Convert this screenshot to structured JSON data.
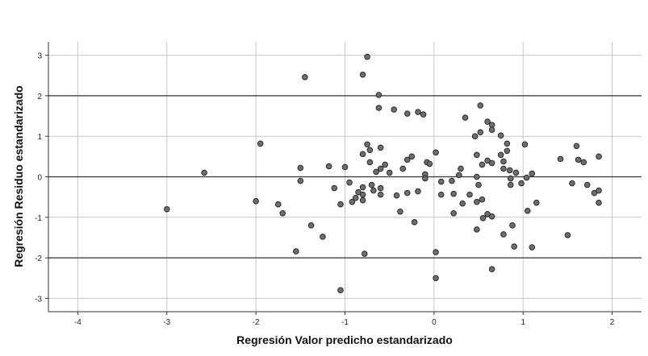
{
  "chart_data": {
    "type": "scatter",
    "title": "",
    "xlabel": "Regresión Valor predicho estandarizado",
    "ylabel": "Regresión Residuo estandarizado",
    "xlim": [
      -4.33,
      2.33
    ],
    "ylim": [
      -3.33,
      3.33
    ],
    "x_ticks": [
      -4,
      -3,
      -2,
      -1,
      0,
      1,
      2
    ],
    "y_ticks": [
      -3,
      -2,
      -1,
      0,
      1,
      2,
      3
    ],
    "reference_lines_y": [
      -2,
      0,
      2
    ],
    "grid": true,
    "legend": "none",
    "colors": {
      "marker_fill": "#6e6e6e",
      "marker_stroke": "#2a2a2a",
      "grid": "#c8c8c8",
      "reference_line": "#333333",
      "axis": "#333333"
    },
    "series": [
      {
        "points": [
          [
            -3.0,
            -0.8
          ],
          [
            -2.58,
            0.1
          ],
          [
            -2.0,
            -0.6
          ],
          [
            -1.95,
            0.82
          ],
          [
            -1.75,
            -0.68
          ],
          [
            -1.7,
            -0.9
          ],
          [
            -1.55,
            -1.84
          ],
          [
            -1.5,
            0.22
          ],
          [
            -1.5,
            -0.1
          ],
          [
            -1.45,
            2.46
          ],
          [
            -1.38,
            -1.2
          ],
          [
            -1.25,
            -1.48
          ],
          [
            -1.18,
            0.26
          ],
          [
            -1.12,
            -0.28
          ],
          [
            -1.05,
            -0.68
          ],
          [
            -1.05,
            -2.8
          ],
          [
            -1.0,
            0.24
          ],
          [
            -0.95,
            -0.14
          ],
          [
            -0.92,
            -0.62
          ],
          [
            -0.88,
            -0.52
          ],
          [
            -0.85,
            -0.38
          ],
          [
            -0.8,
            2.52
          ],
          [
            -0.8,
            0.56
          ],
          [
            -0.8,
            -0.26
          ],
          [
            -0.8,
            -0.44
          ],
          [
            -0.8,
            -0.58
          ],
          [
            -0.78,
            -1.9
          ],
          [
            -0.75,
            2.96
          ],
          [
            -0.75,
            0.8
          ],
          [
            -0.72,
            0.66
          ],
          [
            -0.72,
            0.36
          ],
          [
            -0.7,
            -0.2
          ],
          [
            -0.68,
            -0.34
          ],
          [
            -0.65,
            0.12
          ],
          [
            -0.62,
            2.02
          ],
          [
            -0.62,
            1.7
          ],
          [
            -0.6,
            0.72
          ],
          [
            -0.6,
            0.2
          ],
          [
            -0.6,
            -0.28
          ],
          [
            -0.6,
            -0.44
          ],
          [
            -0.55,
            0.3
          ],
          [
            -0.5,
            0.1
          ],
          [
            -0.45,
            1.66
          ],
          [
            -0.42,
            -0.46
          ],
          [
            -0.38,
            -0.86
          ],
          [
            -0.35,
            0.2
          ],
          [
            -0.3,
            1.56
          ],
          [
            -0.3,
            0.42
          ],
          [
            -0.3,
            -0.4
          ],
          [
            -0.25,
            0.5
          ],
          [
            -0.22,
            -1.12
          ],
          [
            -0.18,
            1.6
          ],
          [
            -0.18,
            -0.36
          ],
          [
            -0.12,
            1.54
          ],
          [
            -0.1,
            0.06
          ],
          [
            -0.1,
            -0.04
          ],
          [
            -0.08,
            0.36
          ],
          [
            -0.05,
            0.32
          ],
          [
            0.02,
            0.6
          ],
          [
            0.02,
            -1.86
          ],
          [
            0.02,
            -2.5
          ],
          [
            0.08,
            -0.12
          ],
          [
            0.08,
            -0.44
          ],
          [
            0.2,
            -0.1
          ],
          [
            0.22,
            -0.42
          ],
          [
            0.22,
            -0.9
          ],
          [
            0.28,
            0.04
          ],
          [
            0.3,
            0.2
          ],
          [
            0.32,
            -0.66
          ],
          [
            0.35,
            1.46
          ],
          [
            0.4,
            -0.44
          ],
          [
            0.46,
            1.0
          ],
          [
            0.48,
            0.54
          ],
          [
            0.48,
            0.0
          ],
          [
            0.48,
            -0.62
          ],
          [
            0.48,
            -1.3
          ],
          [
            0.5,
            -0.2
          ],
          [
            0.52,
            1.76
          ],
          [
            0.52,
            1.1
          ],
          [
            0.54,
            0.3
          ],
          [
            0.54,
            -0.56
          ],
          [
            0.55,
            -1.02
          ],
          [
            0.6,
            1.36
          ],
          [
            0.6,
            0.4
          ],
          [
            0.6,
            -0.92
          ],
          [
            0.65,
            1.28
          ],
          [
            0.65,
            1.16
          ],
          [
            0.65,
            0.34
          ],
          [
            0.65,
            -0.98
          ],
          [
            0.65,
            -2.28
          ],
          [
            0.75,
            1.02
          ],
          [
            0.75,
            0.54
          ],
          [
            0.78,
            0.38
          ],
          [
            0.78,
            0.2
          ],
          [
            0.78,
            -1.42
          ],
          [
            0.82,
            0.82
          ],
          [
            0.82,
            0.64
          ],
          [
            0.85,
            0.16
          ],
          [
            0.86,
            -0.04
          ],
          [
            0.86,
            -0.2
          ],
          [
            0.88,
            -1.2
          ],
          [
            0.9,
            -1.72
          ],
          [
            0.92,
            0.1
          ],
          [
            0.98,
            -0.16
          ],
          [
            1.02,
            0.8
          ],
          [
            1.04,
            -0.02
          ],
          [
            1.05,
            -0.84
          ],
          [
            1.1,
            0.08
          ],
          [
            1.1,
            -1.74
          ],
          [
            1.15,
            -0.64
          ],
          [
            1.42,
            0.44
          ],
          [
            1.5,
            -1.44
          ],
          [
            1.55,
            -0.16
          ],
          [
            1.6,
            0.76
          ],
          [
            1.62,
            0.42
          ],
          [
            1.68,
            0.36
          ],
          [
            1.72,
            -0.2
          ],
          [
            1.8,
            -0.4
          ],
          [
            1.85,
            0.5
          ],
          [
            1.85,
            -0.34
          ],
          [
            1.85,
            -0.64
          ]
        ]
      }
    ]
  }
}
